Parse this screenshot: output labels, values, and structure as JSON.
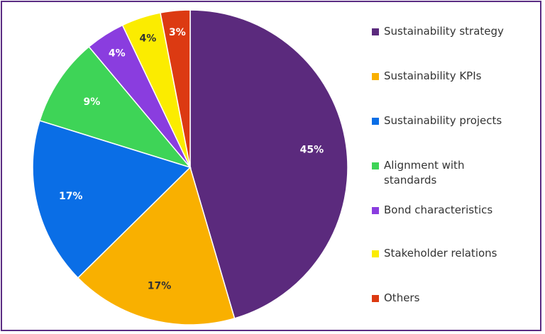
{
  "chart_data": {
    "type": "pie",
    "title": "",
    "slices": [
      {
        "label": "Sustainability strategy",
        "value": 45,
        "display": "45%",
        "color": "#5b2a7d"
      },
      {
        "label": "Sustainability KPIs",
        "value": 17,
        "display": "17%",
        "color": "#f9b000"
      },
      {
        "label": "Sustainability projects",
        "value": 17,
        "display": "17%",
        "color": "#0a6ee6"
      },
      {
        "label": "Alignment with standards",
        "value": 9,
        "display": "9%",
        "color": "#3ed457"
      },
      {
        "label": "Bond characteristics",
        "value": 4,
        "display": "4%",
        "color": "#8a3ddf"
      },
      {
        "label": "Stakeholder relations",
        "value": 4,
        "display": "4%",
        "color": "#fbec00"
      },
      {
        "label": "Others",
        "value": 3,
        "display": "3%",
        "color": "#dc3a12"
      }
    ],
    "legend_position": "right",
    "label_color_dark": "#333333",
    "label_color_light": "#ffffff"
  }
}
